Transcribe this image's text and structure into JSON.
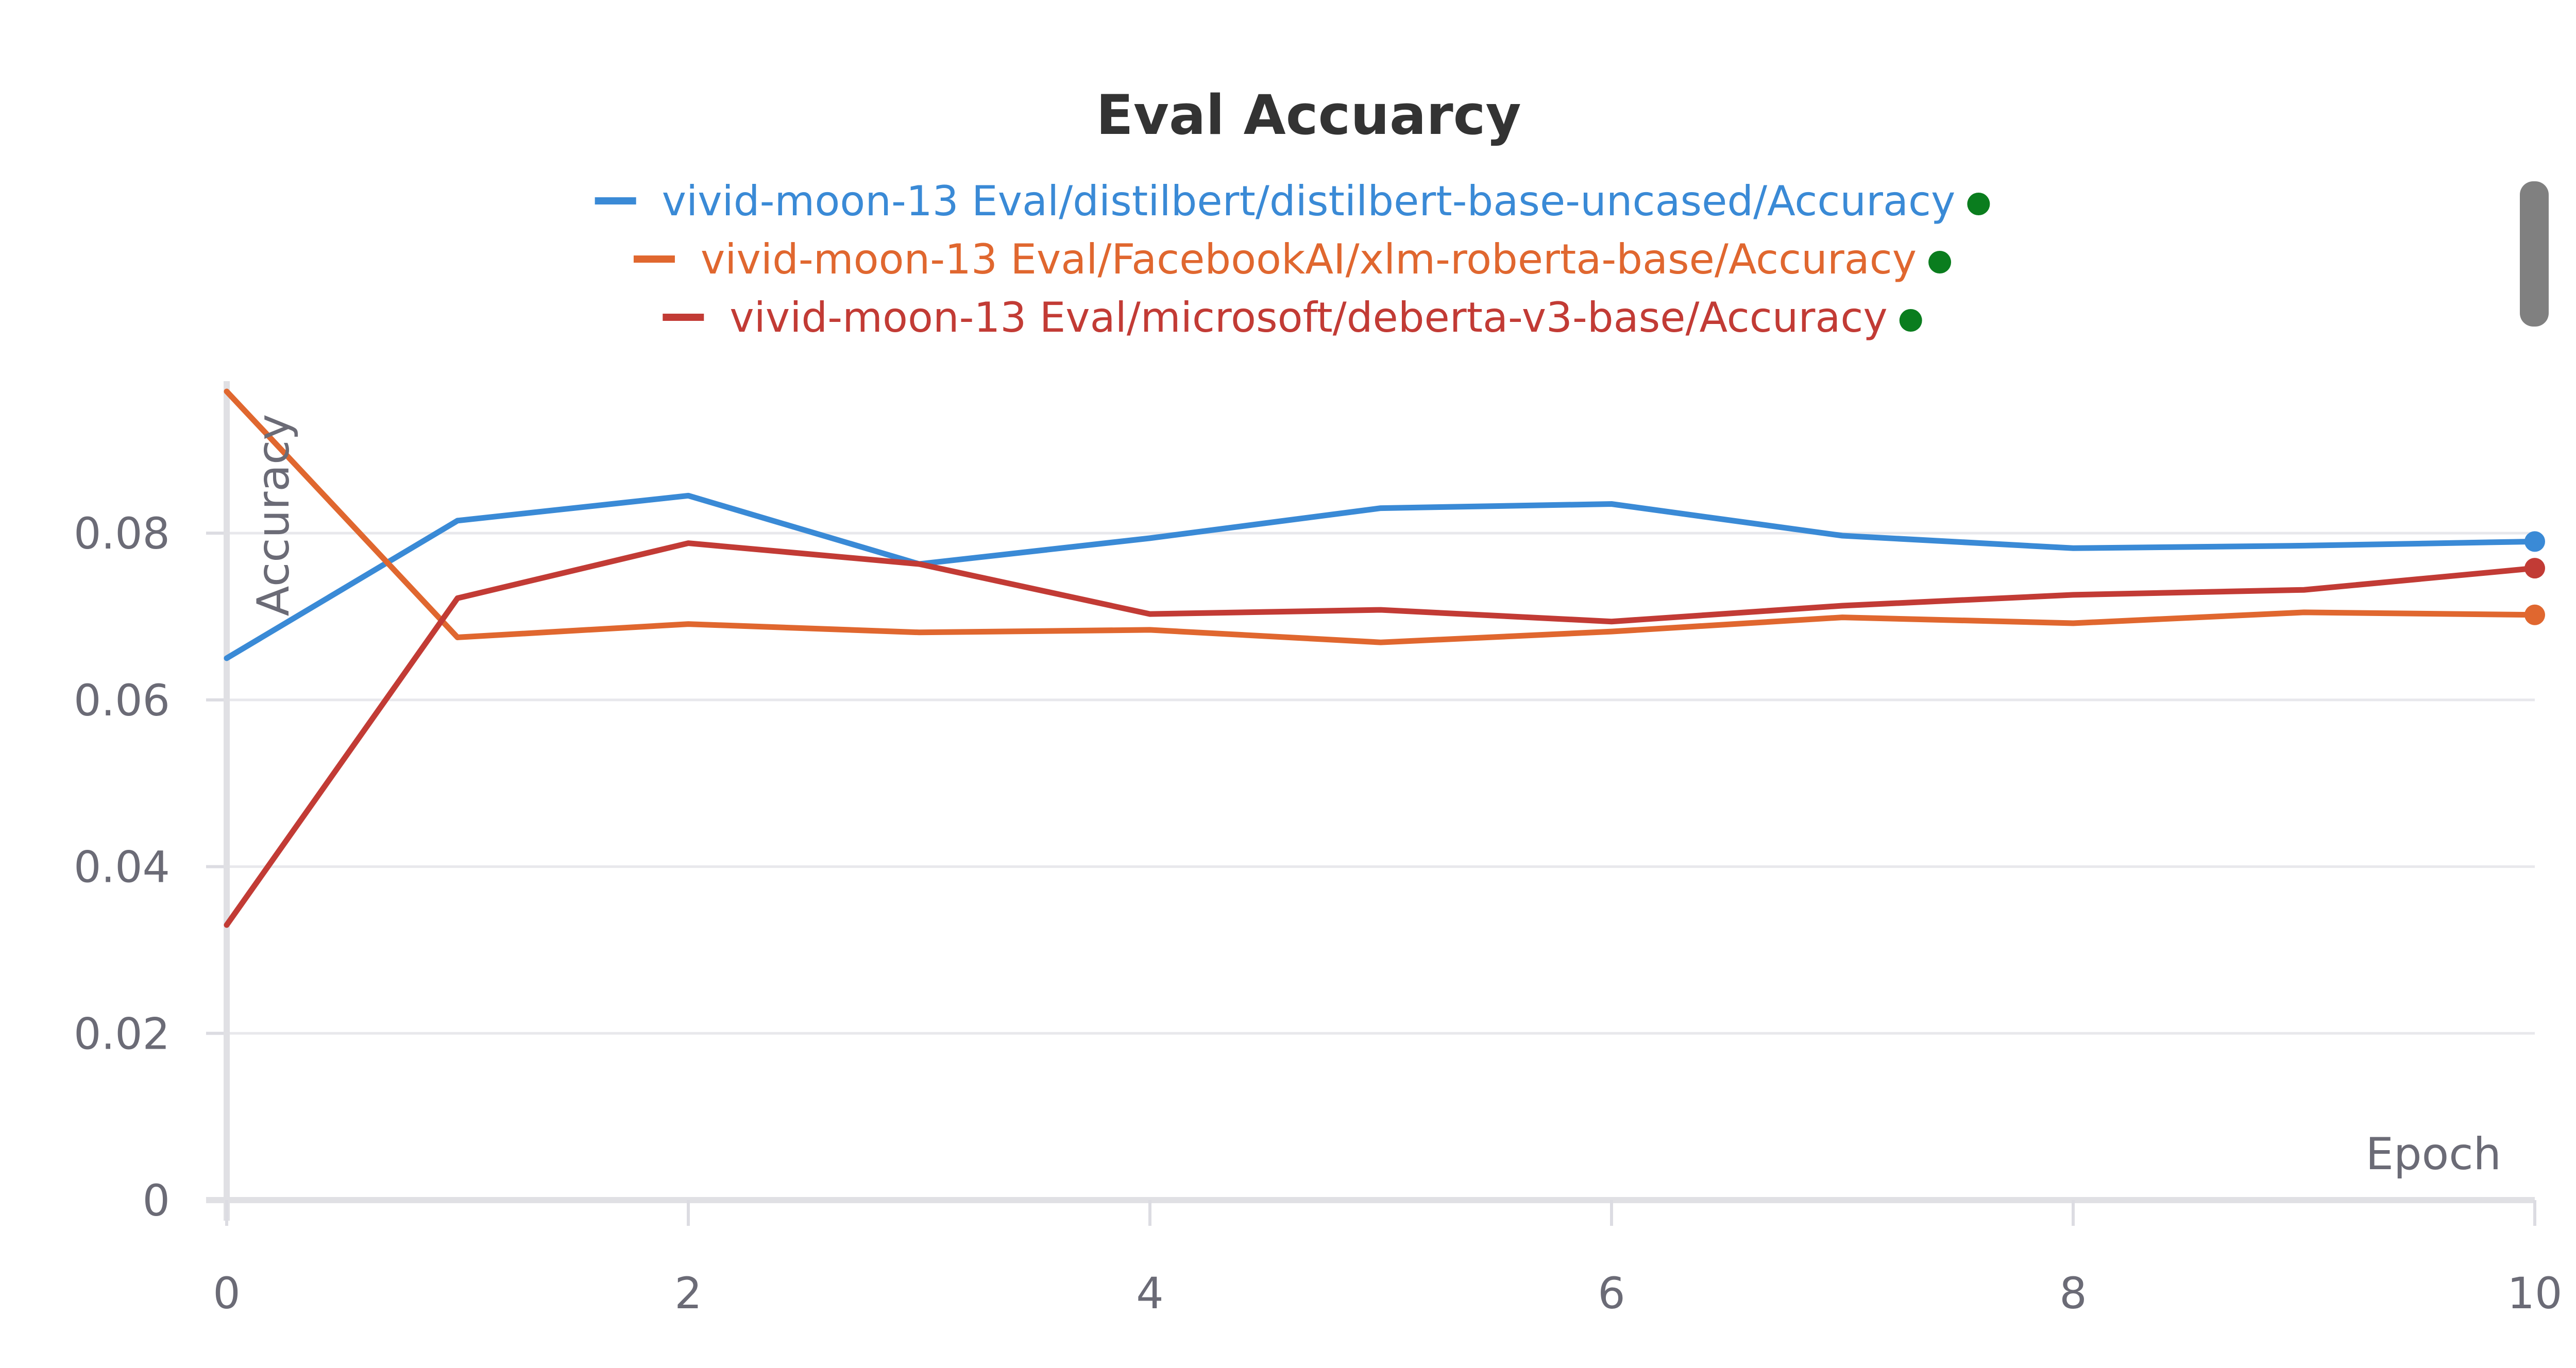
{
  "chart_data": {
    "type": "line",
    "title": "Eval Accuarcy",
    "xlabel": "Epoch",
    "ylabel": "Accuracy",
    "xlim": [
      0,
      10
    ],
    "ylim": [
      0,
      0.097
    ],
    "x_ticks": [
      "0",
      "2",
      "4",
      "6",
      "8",
      "10"
    ],
    "y_ticks": [
      "0",
      "0.02",
      "0.04",
      "0.06",
      "0.08"
    ],
    "legend_position": "top-center",
    "grid": true,
    "x": [
      0,
      1,
      2,
      3,
      4,
      5,
      6,
      7,
      8,
      9,
      10
    ],
    "series": [
      {
        "name": "vivid-moon-13 Eval/distilbert/distilbert-base-uncased/Accuracy",
        "color": "#3a8ad6",
        "values": [
          0.065,
          0.0815,
          0.0845,
          0.0763,
          0.0794,
          0.083,
          0.0835,
          0.0797,
          0.0782,
          0.0785,
          0.079
        ]
      },
      {
        "name": "vivid-moon-13 Eval/FacebookAI/xlm-roberta-base/Accuracy",
        "color": "#e0672f",
        "values": [
          0.097,
          0.0675,
          0.0691,
          0.0681,
          0.0684,
          0.0669,
          0.0682,
          0.0699,
          0.0692,
          0.0705,
          0.0702
        ]
      },
      {
        "name": "vivid-moon-13 Eval/microsoft/deberta-v3-base/Accuracy",
        "color": "#c23b35",
        "values": [
          0.033,
          0.0722,
          0.0788,
          0.0763,
          0.0703,
          0.0708,
          0.0694,
          0.0713,
          0.0726,
          0.0732,
          0.0758
        ]
      }
    ],
    "status_dot_color": "#0a7d1e"
  }
}
